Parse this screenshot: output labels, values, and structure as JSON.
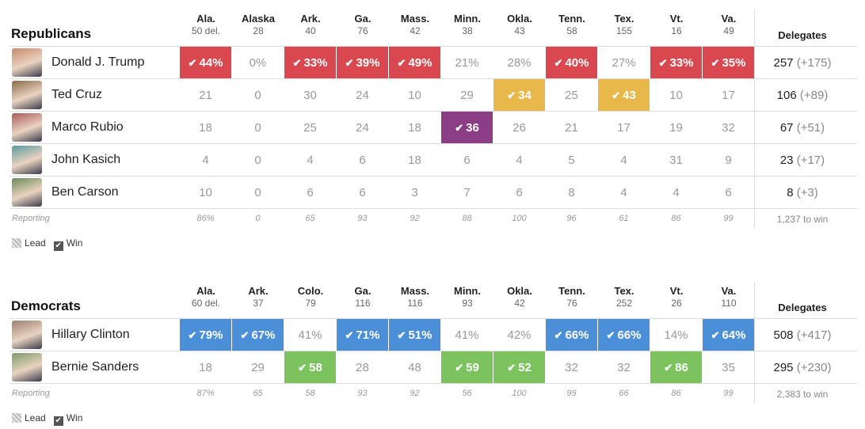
{
  "republicans": {
    "title": "Republicans",
    "delegates_label": "Delegates",
    "reporting_label": "Reporting",
    "to_win": "1,237 to win",
    "states": [
      {
        "abbr": "Ala.",
        "del": "50 del."
      },
      {
        "abbr": "Alaska",
        "del": "28"
      },
      {
        "abbr": "Ark.",
        "del": "40"
      },
      {
        "abbr": "Ga.",
        "del": "76"
      },
      {
        "abbr": "Mass.",
        "del": "42"
      },
      {
        "abbr": "Minn.",
        "del": "38"
      },
      {
        "abbr": "Okla.",
        "del": "43"
      },
      {
        "abbr": "Tenn.",
        "del": "58"
      },
      {
        "abbr": "Tex.",
        "del": "155"
      },
      {
        "abbr": "Vt.",
        "del": "16"
      },
      {
        "abbr": "Va.",
        "del": "49"
      }
    ],
    "candidates": [
      {
        "name": "Donald J. Trump",
        "color": "#d9474f",
        "photo_color": "#c98a6e",
        "delegates": "257",
        "change": "(+175)",
        "cells": [
          {
            "v": "44%",
            "win": true
          },
          {
            "v": "0%",
            "win": false
          },
          {
            "v": "33%",
            "win": true
          },
          {
            "v": "39%",
            "win": true
          },
          {
            "v": "49%",
            "win": true
          },
          {
            "v": "21%",
            "win": false
          },
          {
            "v": "28%",
            "win": false
          },
          {
            "v": "40%",
            "win": true
          },
          {
            "v": "27%",
            "win": false
          },
          {
            "v": "33%",
            "win": true
          },
          {
            "v": "35%",
            "win": true
          }
        ]
      },
      {
        "name": "Ted Cruz",
        "color": "#e8b84a",
        "photo_color": "#8a6a4a",
        "delegates": "106",
        "change": "(+89)",
        "cells": [
          {
            "v": "21",
            "win": false
          },
          {
            "v": "0",
            "win": false
          },
          {
            "v": "30",
            "win": false
          },
          {
            "v": "24",
            "win": false
          },
          {
            "v": "10",
            "win": false
          },
          {
            "v": "29",
            "win": false
          },
          {
            "v": "34",
            "win": true
          },
          {
            "v": "25",
            "win": false
          },
          {
            "v": "43",
            "win": true
          },
          {
            "v": "10",
            "win": false
          },
          {
            "v": "17",
            "win": false
          }
        ]
      },
      {
        "name": "Marco Rubio",
        "color": "#8b3e86",
        "photo_color": "#a85a5a",
        "delegates": "67",
        "change": "(+51)",
        "cells": [
          {
            "v": "18",
            "win": false
          },
          {
            "v": "0",
            "win": false
          },
          {
            "v": "25",
            "win": false
          },
          {
            "v": "24",
            "win": false
          },
          {
            "v": "18",
            "win": false
          },
          {
            "v": "36",
            "win": true
          },
          {
            "v": "26",
            "win": false
          },
          {
            "v": "21",
            "win": false
          },
          {
            "v": "17",
            "win": false
          },
          {
            "v": "19",
            "win": false
          },
          {
            "v": "32",
            "win": false
          }
        ]
      },
      {
        "name": "John Kasich",
        "color": "#4aa5a0",
        "photo_color": "#5a9aa0",
        "delegates": "23",
        "change": "(+17)",
        "cells": [
          {
            "v": "4",
            "win": false
          },
          {
            "v": "0",
            "win": false
          },
          {
            "v": "4",
            "win": false
          },
          {
            "v": "6",
            "win": false
          },
          {
            "v": "18",
            "win": false
          },
          {
            "v": "6",
            "win": false
          },
          {
            "v": "4",
            "win": false
          },
          {
            "v": "5",
            "win": false
          },
          {
            "v": "4",
            "win": false
          },
          {
            "v": "31",
            "win": false
          },
          {
            "v": "9",
            "win": false
          }
        ]
      },
      {
        "name": "Ben Carson",
        "color": "#6bb35a",
        "photo_color": "#6a8a5a",
        "delegates": "8",
        "change": "(+3)",
        "cells": [
          {
            "v": "10",
            "win": false
          },
          {
            "v": "0",
            "win": false
          },
          {
            "v": "6",
            "win": false
          },
          {
            "v": "6",
            "win": false
          },
          {
            "v": "3",
            "win": false
          },
          {
            "v": "7",
            "win": false
          },
          {
            "v": "6",
            "win": false
          },
          {
            "v": "8",
            "win": false
          },
          {
            "v": "4",
            "win": false
          },
          {
            "v": "4",
            "win": false
          },
          {
            "v": "6",
            "win": false
          }
        ]
      }
    ],
    "reporting": [
      "86%",
      "0",
      "65",
      "93",
      "92",
      "88",
      "100",
      "96",
      "61",
      "86",
      "99"
    ]
  },
  "democrats": {
    "title": "Democrats",
    "delegates_label": "Delegates",
    "reporting_label": "Reporting",
    "to_win": "2,383 to win",
    "states": [
      {
        "abbr": "Ala.",
        "del": "60 del."
      },
      {
        "abbr": "Ark.",
        "del": "37"
      },
      {
        "abbr": "Colo.",
        "del": "79"
      },
      {
        "abbr": "Ga.",
        "del": "116"
      },
      {
        "abbr": "Mass.",
        "del": "116"
      },
      {
        "abbr": "Minn.",
        "del": "93"
      },
      {
        "abbr": "Okla.",
        "del": "42"
      },
      {
        "abbr": "Tenn.",
        "del": "76"
      },
      {
        "abbr": "Tex.",
        "del": "252"
      },
      {
        "abbr": "Vt.",
        "del": "26"
      },
      {
        "abbr": "Va.",
        "del": "110"
      }
    ],
    "candidates": [
      {
        "name": "Hillary Clinton",
        "color": "#4b8fd8",
        "photo_color": "#9a8070",
        "delegates": "508",
        "change": "(+417)",
        "cells": [
          {
            "v": "79%",
            "win": true
          },
          {
            "v": "67%",
            "win": true
          },
          {
            "v": "41%",
            "win": false
          },
          {
            "v": "71%",
            "win": true
          },
          {
            "v": "51%",
            "win": true
          },
          {
            "v": "41%",
            "win": false
          },
          {
            "v": "42%",
            "win": false
          },
          {
            "v": "66%",
            "win": true
          },
          {
            "v": "66%",
            "win": true
          },
          {
            "v": "14%",
            "win": false
          },
          {
            "v": "64%",
            "win": true
          }
        ]
      },
      {
        "name": "Bernie Sanders",
        "color": "#7cc35f",
        "photo_color": "#7a9a6a",
        "delegates": "295",
        "change": "(+230)",
        "cells": [
          {
            "v": "18",
            "win": false
          },
          {
            "v": "29",
            "win": false
          },
          {
            "v": "58",
            "win": true
          },
          {
            "v": "28",
            "win": false
          },
          {
            "v": "48",
            "win": false
          },
          {
            "v": "59",
            "win": true
          },
          {
            "v": "52",
            "win": true
          },
          {
            "v": "32",
            "win": false
          },
          {
            "v": "32",
            "win": false
          },
          {
            "v": "86",
            "win": true
          },
          {
            "v": "35",
            "win": false
          }
        ]
      }
    ],
    "reporting": [
      "87%",
      "65",
      "58",
      "93",
      "92",
      "56",
      "100",
      "99",
      "66",
      "86",
      "99"
    ]
  },
  "legend": {
    "lead": "Lead",
    "win": "Win"
  },
  "check_icon": "check-icon"
}
